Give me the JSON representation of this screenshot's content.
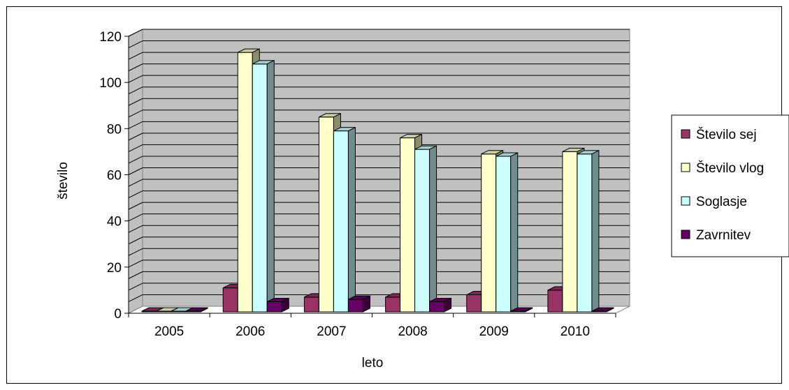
{
  "chart_data": {
    "type": "bar",
    "categories": [
      "2005",
      "2006",
      "2007",
      "2008",
      "2009",
      "2010"
    ],
    "series": [
      {
        "name": "Število sej",
        "values": [
          0,
          11,
          7,
          7,
          8,
          10
        ],
        "color": "#993366"
      },
      {
        "name": "Število vlog",
        "values": [
          0,
          113,
          85,
          76,
          69,
          70
        ],
        "color": "#ffffcc"
      },
      {
        "name": "Soglasje",
        "values": [
          0,
          108,
          79,
          71,
          68,
          69
        ],
        "color": "#ccffff"
      },
      {
        "name": "Zavrnitev",
        "values": [
          0,
          5,
          6,
          5,
          0,
          0
        ],
        "color": "#660066"
      }
    ],
    "xlabel": "leto",
    "ylabel": "število",
    "ylim": [
      0,
      120
    ],
    "yticks": [
      "0",
      "20",
      "40",
      "60",
      "80",
      "100",
      "120"
    ],
    "grid": true,
    "legend": "right",
    "wall_color": "#c0c0c0"
  }
}
